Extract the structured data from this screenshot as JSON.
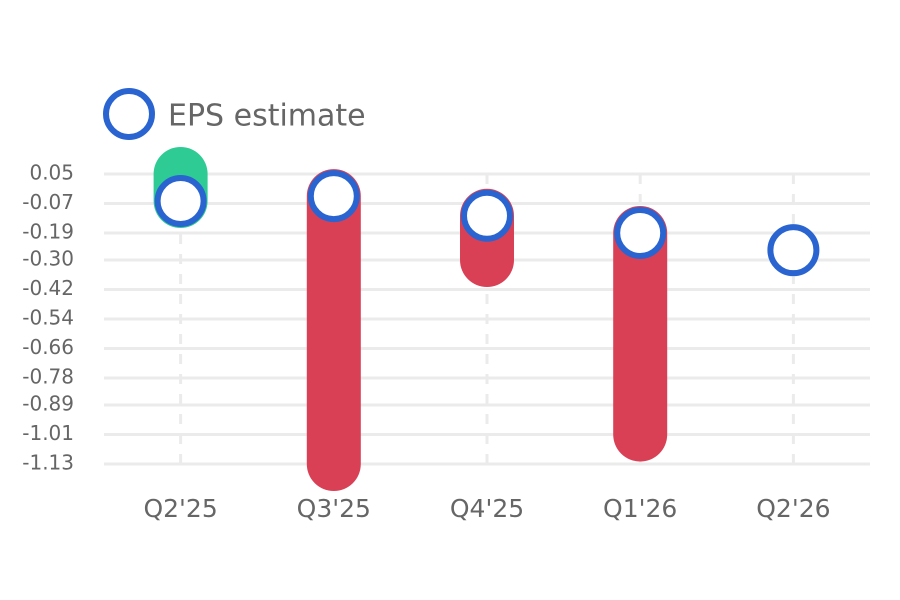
{
  "chart_data": {
    "type": "eps",
    "categories": [
      "Q2'25",
      "Q3'25",
      "Q4'25",
      "Q1'26",
      "Q2'26"
    ],
    "estimates": {
      "name": "EPS estimate",
      "color": "#2a64d0",
      "values": [
        -0.06,
        -0.04,
        -0.12,
        -0.19,
        -0.26
      ]
    },
    "actuals": {
      "values": [
        0.05,
        -1.13,
        -0.3,
        -1.01,
        null
      ],
      "beat_color": "#2ecc94",
      "miss_color": "#d94055"
    },
    "ylim": [
      -1.13,
      0.05
    ],
    "yticks": [
      0.05,
      -0.07,
      -0.19,
      {
        "value": -0.3,
        "label": "-0.30"
      },
      -0.42,
      -0.54,
      -0.66,
      -0.78,
      -0.89,
      -1.01,
      -1.13
    ],
    "grid": true
  }
}
